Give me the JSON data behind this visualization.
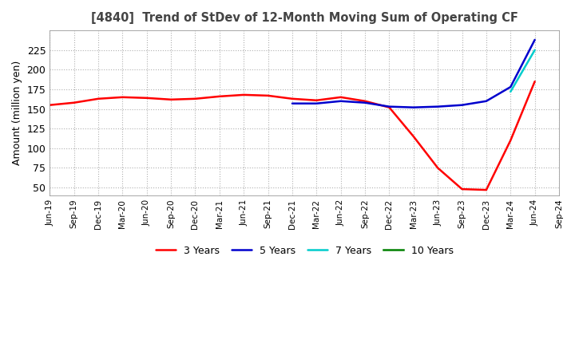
{
  "title": "[4840]  Trend of StDev of 12-Month Moving Sum of Operating CF",
  "ylabel": "Amount (million yen)",
  "ylim": [
    40,
    250
  ],
  "yticks": [
    50,
    75,
    100,
    125,
    150,
    175,
    200,
    225
  ],
  "background_color": "#ffffff",
  "grid_color": "#b0b0b0",
  "series": {
    "3 Years": {
      "color": "#ff0000",
      "data": [
        [
          "Jun-19",
          155
        ],
        [
          "Sep-19",
          158
        ],
        [
          "Dec-19",
          163
        ],
        [
          "Mar-20",
          165
        ],
        [
          "Jun-20",
          164
        ],
        [
          "Sep-20",
          162
        ],
        [
          "Dec-20",
          163
        ],
        [
          "Mar-21",
          166
        ],
        [
          "Jun-21",
          168
        ],
        [
          "Sep-21",
          167
        ],
        [
          "Dec-21",
          163
        ],
        [
          "Mar-22",
          161
        ],
        [
          "Jun-22",
          165
        ],
        [
          "Sep-22",
          160
        ],
        [
          "Dec-22",
          152
        ],
        [
          "Mar-23",
          115
        ],
        [
          "Jun-23",
          75
        ],
        [
          "Sep-23",
          48
        ],
        [
          "Dec-23",
          47
        ],
        [
          "Mar-24",
          110
        ],
        [
          "Jun-24",
          185
        ]
      ]
    },
    "5 Years": {
      "color": "#0000cd",
      "data": [
        [
          "Dec-21",
          157
        ],
        [
          "Mar-22",
          157
        ],
        [
          "Jun-22",
          160
        ],
        [
          "Sep-22",
          158
        ],
        [
          "Dec-22",
          153
        ],
        [
          "Mar-23",
          152
        ],
        [
          "Jun-23",
          153
        ],
        [
          "Sep-23",
          155
        ],
        [
          "Dec-23",
          160
        ],
        [
          "Mar-24",
          178
        ],
        [
          "Jun-24",
          238
        ]
      ]
    },
    "7 Years": {
      "color": "#00cccc",
      "data": [
        [
          "Mar-24",
          172
        ],
        [
          "Jun-24",
          225
        ]
      ]
    },
    "10 Years": {
      "color": "#008000",
      "data": []
    }
  },
  "xtick_labels": [
    "Jun-19",
    "Sep-19",
    "Dec-19",
    "Mar-20",
    "Jun-20",
    "Sep-20",
    "Dec-20",
    "Mar-21",
    "Jun-21",
    "Sep-21",
    "Dec-21",
    "Mar-22",
    "Jun-22",
    "Sep-22",
    "Dec-22",
    "Mar-23",
    "Jun-23",
    "Sep-23",
    "Dec-23",
    "Mar-24",
    "Jun-24",
    "Sep-24"
  ]
}
